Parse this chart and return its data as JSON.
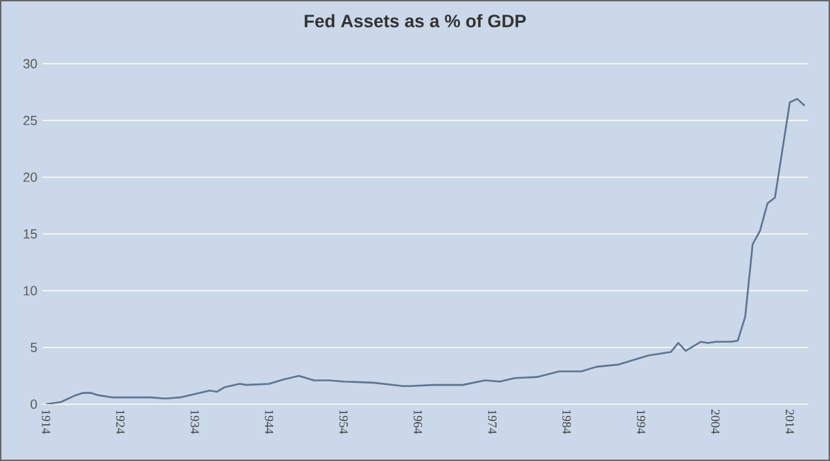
{
  "chart_data": {
    "type": "line",
    "title": "Fed Assets as a % of GDP",
    "x": [
      1914,
      1916,
      1918,
      1919,
      1920,
      1921,
      1923,
      1926,
      1928,
      1930,
      1932,
      1934,
      1936,
      1937,
      1938,
      1940,
      1941,
      1944,
      1946,
      1948,
      1950,
      1952,
      1954,
      1958,
      1962,
      1963,
      1966,
      1970,
      1973,
      1975,
      1977,
      1980,
      1983,
      1986,
      1988,
      1991,
      1993,
      1995,
      1998,
      1999,
      2000,
      2002,
      2003,
      2004,
      2006,
      2007,
      2008,
      2009,
      2010,
      2011,
      2012,
      2013,
      2014,
      2015,
      2016
    ],
    "series": [
      {
        "color": "#5d7592",
        "values": [
          0,
          0.2,
          0.8,
          1.0,
          1.0,
          0.8,
          0.6,
          0.6,
          0.6,
          0.5,
          0.6,
          0.9,
          1.2,
          1.1,
          1.5,
          1.8,
          1.7,
          1.8,
          2.2,
          2.5,
          2.1,
          2.1,
          2.0,
          1.9,
          1.6,
          1.6,
          1.7,
          1.7,
          2.1,
          2.0,
          2.3,
          2.4,
          2.9,
          2.9,
          3.3,
          3.5,
          3.9,
          4.3,
          4.6,
          5.4,
          4.7,
          5.5,
          5.4,
          5.5,
          5.5,
          5.6,
          7.7,
          14.1,
          15.3,
          17.7,
          18.2,
          22.4,
          26.6,
          26.9,
          26.3
        ]
      }
    ],
    "xlim": [
      1913.5,
      2016.5
    ],
    "xticks": [
      1914,
      1924,
      1934,
      1944,
      1954,
      1964,
      1974,
      1984,
      1994,
      2004,
      2014
    ],
    "ylim": [
      0,
      30
    ],
    "yticks": [
      0,
      5,
      10,
      15,
      20,
      25,
      30
    ],
    "grid": "y",
    "marker": "none",
    "line_style": "solid"
  }
}
